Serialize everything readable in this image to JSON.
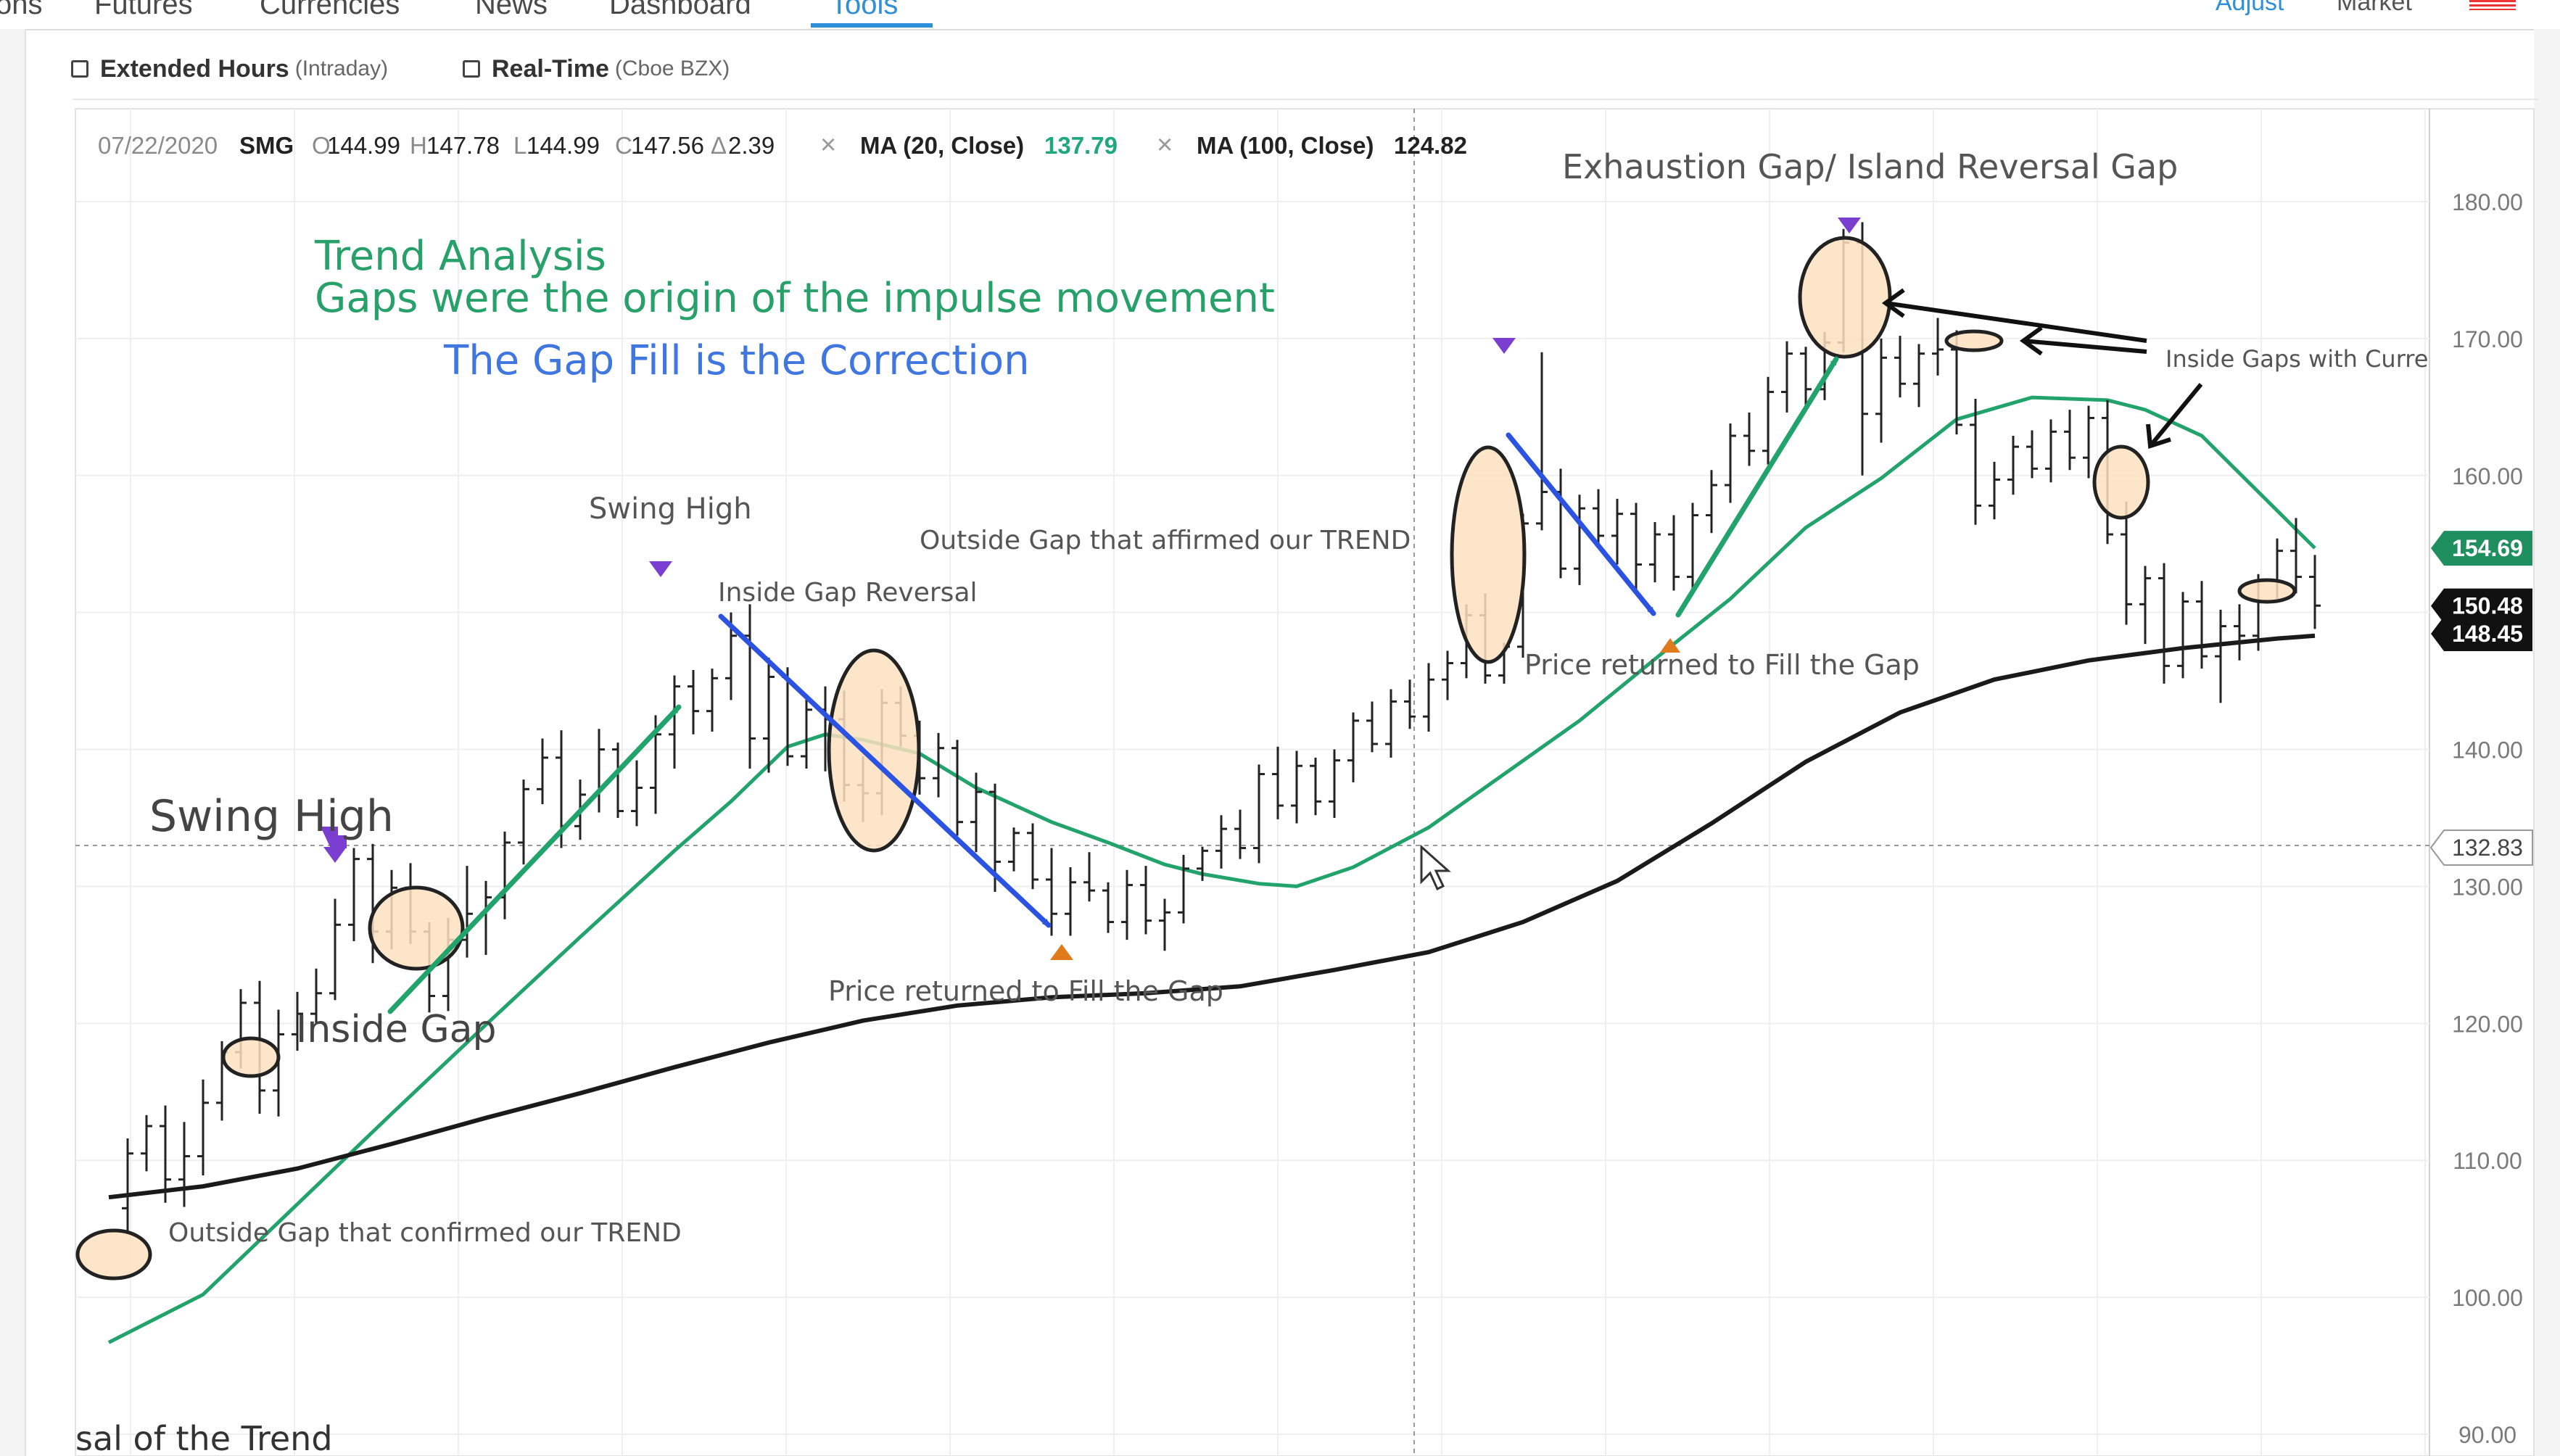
{
  "nav": {
    "tabs": [
      {
        "label": "ons",
        "active": false
      },
      {
        "label": "Futures",
        "active": false
      },
      {
        "label": "Currencies",
        "active": false
      },
      {
        "label": "News",
        "active": false
      },
      {
        "label": "Dashboard",
        "active": false
      },
      {
        "label": "Tools",
        "active": true
      }
    ],
    "right_links": [
      "Adjust",
      "Market"
    ]
  },
  "options": {
    "extended_hours": {
      "label": "Extended Hours",
      "sub": "(Intraday)",
      "checked": false
    },
    "real_time": {
      "label": "Real-Time",
      "sub": "(Cboe BZX)",
      "checked": false
    }
  },
  "quote": {
    "date": "07/22/2020",
    "symbol": "SMG",
    "open_label": "O",
    "open": "144.99",
    "high_label": "H",
    "high": "147.78",
    "low_label": "L",
    "low": "144.99",
    "close_label": "C",
    "close": "147.56",
    "change_label": "Δ",
    "change": "2.39",
    "close_icon": "×",
    "ma20_label": "MA (20, Close)",
    "ma20_value": "137.79",
    "ma100_label": "MA (100, Close)",
    "ma100_value": "124.82"
  },
  "colors": {
    "ma20": "#21a36b",
    "ma100": "#1a1a1a",
    "bars": "#222222",
    "arrow_green": "#21a36b",
    "arrow_blue": "#2b52e0",
    "marker_purple": "#7a3fd1",
    "marker_orange": "#e07a1a",
    "ellipse_fill": "#fbe0c0",
    "ellipse_stroke": "#222222",
    "badge_green": "#1f8f5f",
    "badge_black": "#111111"
  },
  "annotations": {
    "trend_title": "Trend Analysis",
    "trend_sub": "Gaps were the origin of the impulse movement",
    "gap_fill": "The Gap Fill is the Correction",
    "swing_high_large": "Swing High",
    "swing_high_small": "Swing High",
    "inside_gap": "Inside Gap",
    "outside_gap_confirmed": "Outside Gap that confirmed our TREND",
    "inside_gap_reversal": "Inside Gap Reversal",
    "outside_gap_affirmed": "Outside Gap that affirmed our TREND",
    "price_returned_1": "Price returned to Fill the Gap",
    "price_returned_2": "Price returned to Fill the Gap",
    "exhaustion_gap": "Exhaustion Gap/ Island Reversal Gap",
    "inside_gaps_current": "Inside Gaps with Curre",
    "bottom_partial": "sal of the Trend"
  },
  "chart_data": {
    "type": "ohlc",
    "ylim": [
      90,
      183
    ],
    "y_ticks": [
      "180.00",
      "170.00",
      "160.00",
      "150.00",
      "140.00",
      "130.00",
      "120.00",
      "110.00",
      "100.00",
      "90.00"
    ],
    "grid": true,
    "crosshair_price": "132.83",
    "badges": [
      {
        "label": "154.69",
        "value": 154.69,
        "kind": "ma20"
      },
      {
        "label": "150.48",
        "value": 150.48,
        "kind": "price"
      },
      {
        "label": "148.45",
        "value": 148.45,
        "kind": "price"
      }
    ],
    "bars": [
      [
        1,
        106.5,
        111.6,
        104.8,
        110.5
      ],
      [
        2,
        110.5,
        113.3,
        109.2,
        112.5
      ],
      [
        3,
        112.5,
        114.0,
        106.9,
        108.6
      ],
      [
        4,
        108.6,
        112.8,
        106.6,
        110.3
      ],
      [
        5,
        110.3,
        115.9,
        108.9,
        114.2
      ],
      [
        6,
        114.2,
        118.7,
        112.9,
        117.9
      ],
      [
        7,
        117.9,
        122.5,
        116.7,
        121.5
      ],
      [
        8,
        121.5,
        123.1,
        113.4,
        115.1
      ],
      [
        9,
        115.1,
        121.0,
        113.2,
        119.2
      ],
      [
        10,
        119.2,
        122.3,
        118.0,
        120.7
      ],
      [
        11,
        120.7,
        124.0,
        120.0,
        122.2
      ],
      [
        12,
        122.2,
        129.1,
        121.7,
        127.2
      ],
      [
        13,
        127.2,
        132.8,
        126.0,
        132.0
      ],
      [
        14,
        132.0,
        133.1,
        124.4,
        126.7
      ],
      [
        15,
        126.7,
        131.2,
        125.4,
        129.9
      ],
      [
        16,
        129.9,
        131.7,
        125.8,
        126.7
      ],
      [
        17,
        126.7,
        127.4,
        120.8,
        122.0
      ],
      [
        18,
        122.0,
        127.7,
        120.9,
        126.1
      ],
      [
        19,
        126.1,
        131.5,
        124.8,
        128.0
      ],
      [
        20,
        128.0,
        130.4,
        125.0,
        129.2
      ],
      [
        21,
        129.2,
        134.0,
        127.6,
        133.2
      ],
      [
        22,
        133.2,
        137.8,
        131.6,
        137.1
      ],
      [
        23,
        137.1,
        140.8,
        136.0,
        139.4
      ],
      [
        24,
        139.4,
        141.4,
        132.8,
        134.4
      ],
      [
        25,
        134.4,
        137.8,
        133.4,
        136.7
      ],
      [
        26,
        136.7,
        141.5,
        135.4,
        140.0
      ],
      [
        27,
        140.0,
        140.5,
        135.0,
        135.5
      ],
      [
        28,
        135.5,
        139.2,
        134.4,
        137.2
      ],
      [
        29,
        137.2,
        142.5,
        135.3,
        141.1
      ],
      [
        30,
        141.1,
        145.4,
        138.6,
        144.6
      ],
      [
        31,
        144.6,
        145.8,
        141.1,
        142.8
      ],
      [
        32,
        142.8,
        145.9,
        141.3,
        145.2
      ],
      [
        33,
        145.2,
        150.0,
        143.6,
        148.3
      ],
      [
        34,
        148.3,
        150.6,
        138.6,
        140.8
      ],
      [
        35,
        140.8,
        146.7,
        138.3,
        145.3
      ],
      [
        36,
        145.3,
        146.0,
        138.8,
        139.5
      ],
      [
        37,
        139.5,
        143.9,
        138.6,
        142.9
      ],
      [
        38,
        142.9,
        144.6,
        138.4,
        142.2
      ],
      [
        39,
        142.2,
        144.3,
        136.2,
        137.4
      ],
      [
        40,
        137.4,
        139.5,
        134.7,
        136.8
      ],
      [
        41,
        136.8,
        144.4,
        135.2,
        143.4
      ],
      [
        42,
        143.4,
        144.6,
        140.2,
        141.0
      ],
      [
        43,
        141.0,
        142.1,
        136.7,
        137.9
      ],
      [
        44,
        137.9,
        141.2,
        136.5,
        140.1
      ],
      [
        45,
        140.1,
        140.7,
        133.7,
        134.7
      ],
      [
        46,
        134.7,
        138.3,
        132.5,
        136.9
      ],
      [
        47,
        136.9,
        137.5,
        129.6,
        131.8
      ],
      [
        48,
        131.8,
        134.3,
        131.1,
        133.9
      ],
      [
        49,
        133.9,
        134.6,
        129.8,
        130.5
      ],
      [
        50,
        130.5,
        132.8,
        126.4,
        128.0
      ],
      [
        51,
        128.0,
        131.4,
        126.4,
        130.3
      ],
      [
        52,
        130.3,
        132.5,
        128.9,
        129.7
      ],
      [
        53,
        129.7,
        130.3,
        126.6,
        127.4
      ],
      [
        54,
        127.4,
        131.2,
        126.1,
        130.1
      ],
      [
        55,
        130.1,
        131.5,
        126.5,
        127.5
      ],
      [
        56,
        127.5,
        129.1,
        125.3,
        128.1
      ],
      [
        57,
        128.1,
        132.3,
        127.3,
        131.3
      ],
      [
        58,
        131.3,
        132.9,
        130.4,
        132.6
      ],
      [
        59,
        132.6,
        135.2,
        131.3,
        134.2
      ],
      [
        60,
        134.2,
        135.6,
        132.0,
        132.8
      ],
      [
        61,
        132.8,
        138.9,
        131.7,
        138.2
      ],
      [
        62,
        138.2,
        140.2,
        134.9,
        135.9
      ],
      [
        63,
        135.9,
        139.9,
        134.6,
        138.8
      ],
      [
        64,
        138.8,
        139.4,
        135.2,
        136.2
      ],
      [
        65,
        136.2,
        140.0,
        135.0,
        139.2
      ],
      [
        66,
        139.2,
        142.7,
        137.6,
        142.1
      ],
      [
        67,
        142.1,
        143.5,
        139.8,
        140.4
      ],
      [
        68,
        140.4,
        144.4,
        139.4,
        143.5
      ],
      [
        69,
        143.5,
        145.1,
        141.5,
        142.4
      ],
      [
        70,
        142.4,
        146.3,
        141.3,
        145.1
      ],
      [
        71,
        145.1,
        147.2,
        143.6,
        146.3
      ],
      [
        72,
        146.3,
        150.6,
        145.2,
        149.8
      ],
      [
        73,
        149.8,
        151.4,
        144.8,
        145.4
      ],
      [
        74,
        145.4,
        147.8,
        144.8,
        147.5
      ],
      [
        75,
        147.5,
        157.2,
        146.7,
        156.5
      ],
      [
        76,
        156.5,
        169.0,
        156.0,
        158.8
      ],
      [
        77,
        158.8,
        160.5,
        152.5,
        153.2
      ],
      [
        78,
        153.2,
        158.6,
        152.0,
        157.6
      ],
      [
        79,
        157.6,
        159.0,
        154.7,
        155.6
      ],
      [
        80,
        155.6,
        158.3,
        153.5,
        157.2
      ],
      [
        81,
        157.2,
        158.0,
        151.3,
        153.5
      ],
      [
        82,
        153.5,
        156.6,
        152.2,
        155.7
      ],
      [
        83,
        155.7,
        157.1,
        151.6,
        152.6
      ],
      [
        84,
        152.6,
        158.0,
        151.3,
        157.1
      ],
      [
        85,
        157.1,
        160.4,
        155.8,
        159.3
      ],
      [
        86,
        159.3,
        163.8,
        158.0,
        162.9
      ],
      [
        87,
        162.9,
        164.6,
        160.7,
        161.8
      ],
      [
        88,
        161.8,
        167.2,
        160.8,
        166.1
      ],
      [
        89,
        166.1,
        169.8,
        164.6,
        168.9
      ],
      [
        90,
        168.9,
        169.4,
        164.9,
        166.3
      ],
      [
        91,
        166.3,
        170.5,
        165.5,
        169.7
      ],
      [
        92,
        169.7,
        178.0,
        169.0,
        177.0
      ],
      [
        93,
        177.0,
        178.5,
        160.0,
        164.5
      ],
      [
        94,
        164.5,
        170.0,
        162.4,
        168.6
      ],
      [
        95,
        168.6,
        170.2,
        165.7,
        166.7
      ],
      [
        96,
        166.7,
        169.6,
        165.0,
        168.9
      ],
      [
        97,
        168.9,
        171.5,
        167.3,
        169.2
      ],
      [
        98,
        169.2,
        170.6,
        163.0,
        163.7
      ],
      [
        99,
        163.7,
        165.6,
        156.4,
        157.8
      ],
      [
        100,
        157.8,
        161.0,
        156.8,
        159.7
      ],
      [
        101,
        159.7,
        162.9,
        158.6,
        162.1
      ],
      [
        102,
        162.1,
        163.3,
        159.8,
        160.5
      ],
      [
        103,
        160.5,
        164.1,
        159.5,
        163.2
      ],
      [
        104,
        163.2,
        164.8,
        160.4,
        161.3
      ],
      [
        105,
        161.3,
        165.1,
        159.8,
        164.2
      ],
      [
        106,
        164.2,
        165.5,
        155.0,
        155.7
      ],
      [
        107,
        155.7,
        158.1,
        149.1,
        150.6
      ],
      [
        108,
        150.6,
        153.4,
        147.7,
        152.5
      ],
      [
        109,
        152.5,
        153.6,
        144.8,
        146.1
      ],
      [
        110,
        146.1,
        151.5,
        145.2,
        150.8
      ],
      [
        111,
        150.8,
        152.3,
        145.9,
        146.8
      ],
      [
        112,
        146.8,
        150.2,
        143.4,
        149.0
      ],
      [
        113,
        149.0,
        150.6,
        146.5,
        148.3
      ],
      [
        114,
        148.3,
        152.8,
        147.2,
        152.3
      ],
      [
        115,
        152.3,
        155.4,
        151.0,
        154.5
      ],
      [
        116,
        154.5,
        156.9,
        151.4,
        152.6
      ],
      [
        117,
        152.6,
        154.2,
        148.8,
        150.5
      ]
    ],
    "series": [
      {
        "name": "MA (20, Close)",
        "color": "#21a36b",
        "points": [
          [
            0,
            96.7
          ],
          [
            5,
            100.2
          ],
          [
            10,
            106.8
          ],
          [
            15,
            113.4
          ],
          [
            20,
            119.9
          ],
          [
            25,
            126.3
          ],
          [
            30,
            132.6
          ],
          [
            33,
            136.2
          ],
          [
            36,
            140.2
          ],
          [
            38,
            141.1
          ],
          [
            40,
            140.7
          ],
          [
            43,
            139.7
          ],
          [
            46,
            137.2
          ],
          [
            50,
            134.7
          ],
          [
            53,
            133.2
          ],
          [
            56,
            131.6
          ],
          [
            58,
            130.9
          ],
          [
            61,
            130.2
          ],
          [
            63,
            130.0
          ],
          [
            66,
            131.4
          ],
          [
            70,
            134.3
          ],
          [
            74,
            138.2
          ],
          [
            78,
            142.1
          ],
          [
            82,
            146.6
          ],
          [
            86,
            151.0
          ],
          [
            90,
            156.2
          ],
          [
            94,
            159.8
          ],
          [
            98,
            164.1
          ],
          [
            102,
            165.7
          ],
          [
            106,
            165.5
          ],
          [
            108,
            164.8
          ],
          [
            111,
            162.9
          ],
          [
            114,
            158.8
          ],
          [
            117,
            154.7
          ]
        ]
      },
      {
        "name": "MA (100, Close)",
        "color": "#1a1a1a",
        "points": [
          [
            0,
            107.3
          ],
          [
            5,
            108.1
          ],
          [
            10,
            109.4
          ],
          [
            15,
            111.2
          ],
          [
            20,
            113.1
          ],
          [
            25,
            114.9
          ],
          [
            30,
            116.8
          ],
          [
            35,
            118.6
          ],
          [
            40,
            120.2
          ],
          [
            45,
            121.3
          ],
          [
            50,
            121.9
          ],
          [
            55,
            122.2
          ],
          [
            60,
            122.7
          ],
          [
            65,
            123.9
          ],
          [
            70,
            125.2
          ],
          [
            75,
            127.4
          ],
          [
            80,
            130.4
          ],
          [
            85,
            134.6
          ],
          [
            90,
            139.1
          ],
          [
            95,
            142.7
          ],
          [
            100,
            145.1
          ],
          [
            105,
            146.5
          ],
          [
            110,
            147.4
          ],
          [
            115,
            148.1
          ],
          [
            117,
            148.3
          ]
        ]
      }
    ]
  }
}
